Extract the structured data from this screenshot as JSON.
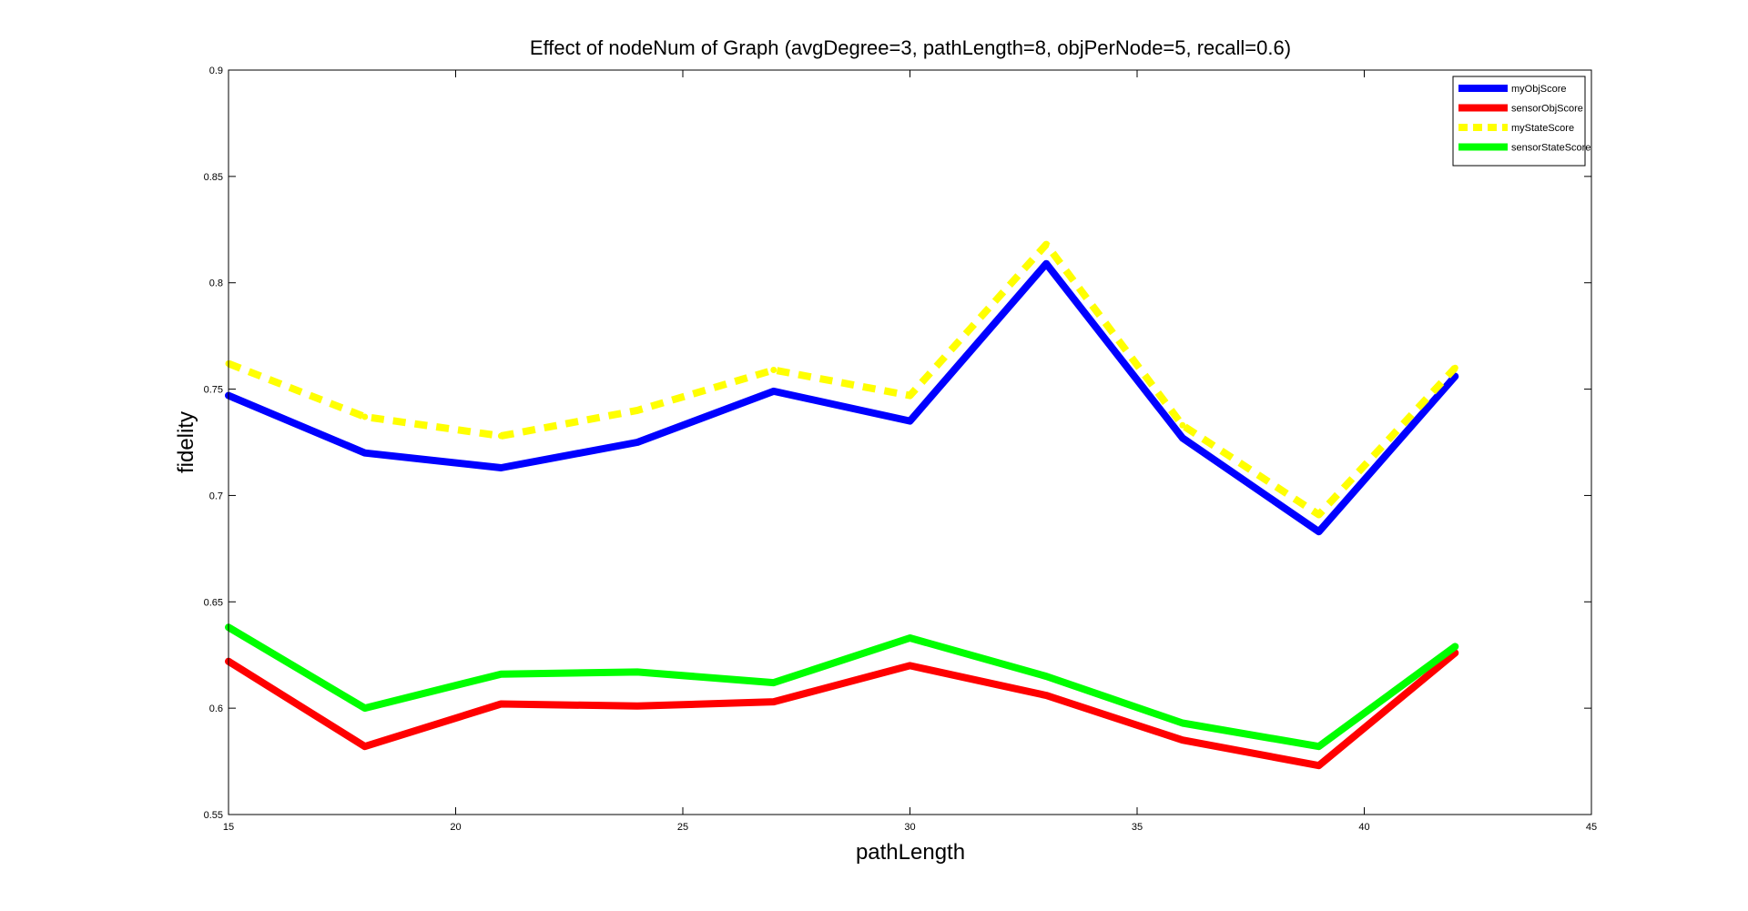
{
  "chart_data": {
    "type": "line",
    "title": "Effect of nodeNum of Graph (avgDegree=3, pathLength=8, objPerNode=5, recall=0.6)",
    "xlabel": "pathLength",
    "ylabel": "fidelity",
    "xlim": [
      15,
      45
    ],
    "ylim": [
      0.55,
      0.9
    ],
    "xticks": [
      15,
      20,
      25,
      30,
      35,
      40,
      45
    ],
    "yticks": [
      0.55,
      0.6,
      0.65,
      0.7,
      0.75,
      0.8,
      0.85,
      0.9
    ],
    "xtick_labels": [
      "15",
      "20",
      "25",
      "30",
      "35",
      "40",
      "45"
    ],
    "ytick_labels": [
      "0.55",
      "0.6",
      "0.65",
      "0.7",
      "0.75",
      "0.8",
      "0.85",
      "0.9"
    ],
    "grid": false,
    "legend_position": "top-right",
    "x": [
      15,
      18,
      21,
      24,
      27,
      30,
      33,
      36,
      39,
      42
    ],
    "series": [
      {
        "name": "myObjScore",
        "color": "#0000ff",
        "dashed": false,
        "values": [
          0.747,
          0.72,
          0.713,
          0.725,
          0.749,
          0.735,
          0.809,
          0.727,
          0.683,
          0.756
        ]
      },
      {
        "name": "sensorObjScore",
        "color": "#ff0000",
        "dashed": false,
        "values": [
          0.622,
          0.582,
          0.602,
          0.601,
          0.603,
          0.62,
          0.606,
          0.585,
          0.573,
          0.626
        ]
      },
      {
        "name": "myStateScore",
        "color": "#ffff00",
        "dashed": true,
        "values": [
          0.762,
          0.737,
          0.728,
          0.74,
          0.759,
          0.747,
          0.818,
          0.733,
          0.691,
          0.76
        ]
      },
      {
        "name": "sensorStateScore",
        "color": "#00ff00",
        "dashed": false,
        "values": [
          0.638,
          0.6,
          0.616,
          0.617,
          0.612,
          0.633,
          0.615,
          0.593,
          0.582,
          0.629
        ]
      }
    ]
  }
}
